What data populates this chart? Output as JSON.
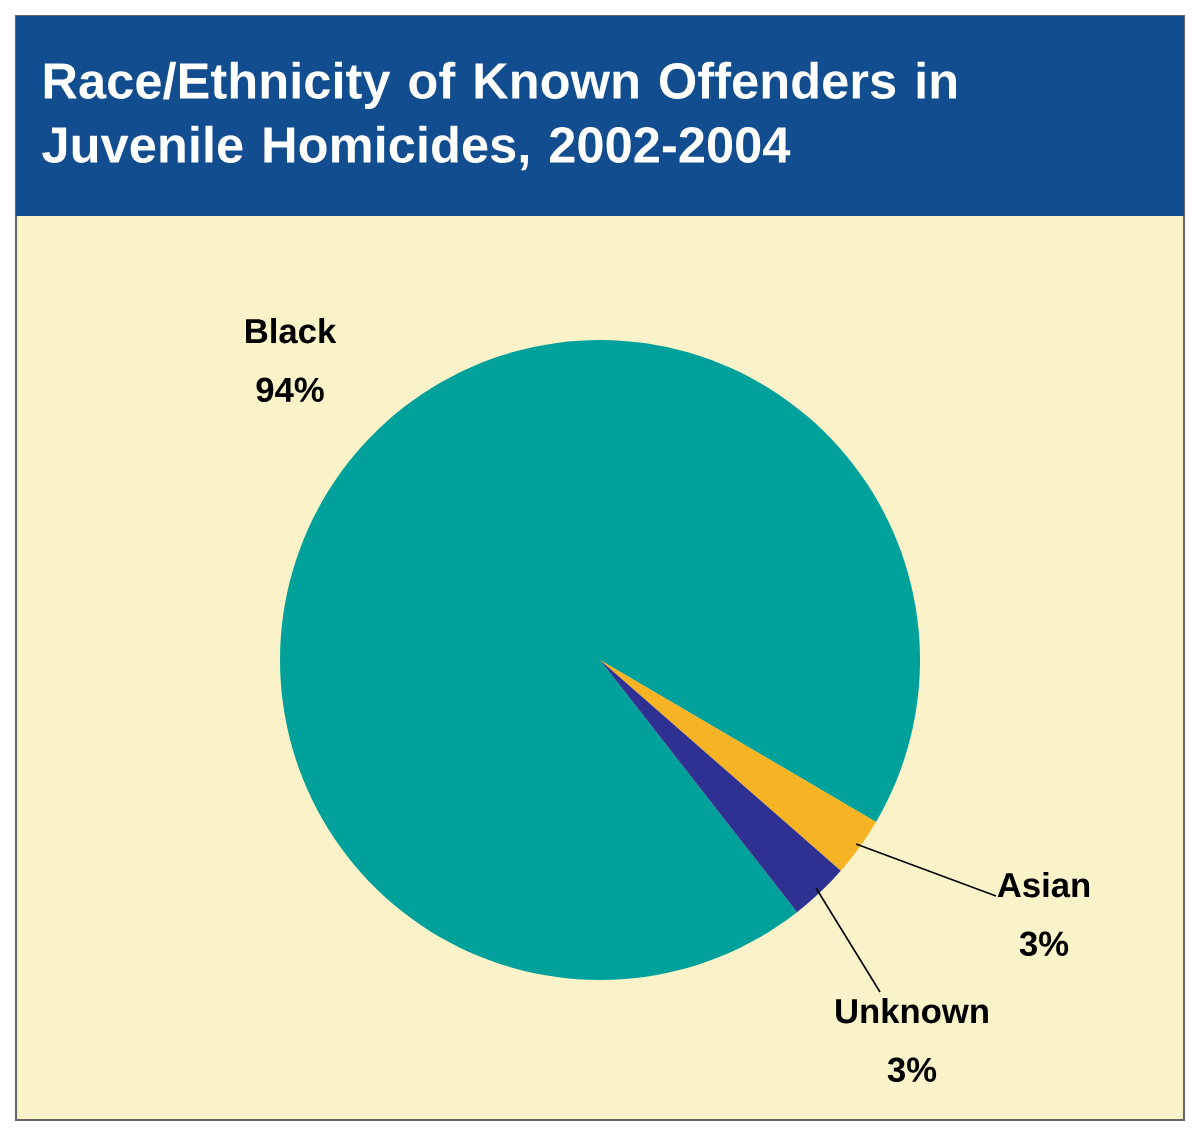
{
  "chart_data": {
    "type": "pie",
    "title": "Race/Ethnicity of Known Offenders in Juvenile Homicides, 2002-2004",
    "categories": [
      "Black",
      "Asian",
      "Unknown"
    ],
    "values": [
      94,
      3,
      3
    ],
    "value_labels": [
      "94%",
      "3%",
      "3%"
    ],
    "colors": [
      "#00a19a",
      "#f6b323",
      "#2e3192"
    ]
  }
}
